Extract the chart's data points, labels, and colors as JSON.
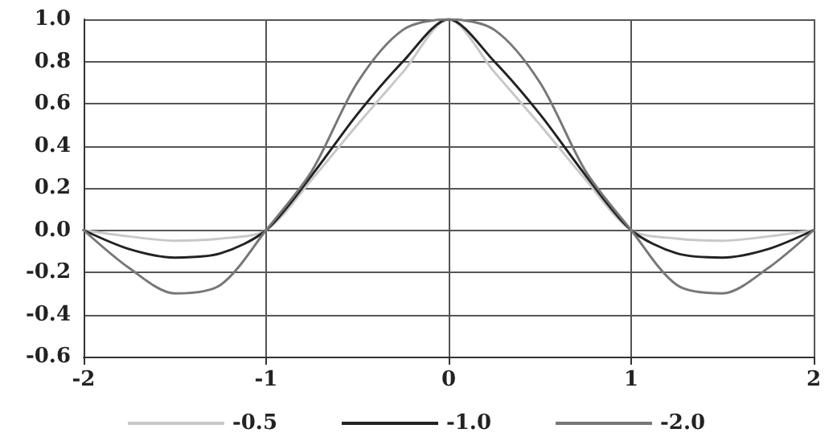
{
  "chart_data": {
    "type": "line",
    "x": [
      -2,
      -1.75,
      -1.5,
      -1.25,
      -1,
      -0.75,
      -0.5,
      -0.25,
      0,
      0.25,
      0.5,
      0.75,
      1,
      1.25,
      1.5,
      1.75,
      2
    ],
    "series": [
      {
        "name": "-0.5",
        "color": "#c8c8c8",
        "values": [
          0,
          -0.03,
          -0.05,
          -0.04,
          0,
          0.24,
          0.5,
          0.75,
          1,
          0.75,
          0.5,
          0.24,
          0,
          -0.04,
          -0.05,
          -0.03,
          0
        ]
      },
      {
        "name": "-1.0",
        "color": "#222222",
        "values": [
          0,
          -0.09,
          -0.13,
          -0.11,
          0,
          0.26,
          0.55,
          0.8,
          1,
          0.8,
          0.55,
          0.26,
          0,
          -0.11,
          -0.13,
          -0.09,
          0
        ]
      },
      {
        "name": "-2.0",
        "color": "#777777",
        "values": [
          0,
          -0.18,
          -0.3,
          -0.26,
          0,
          0.28,
          0.7,
          0.95,
          1,
          0.95,
          0.7,
          0.28,
          0,
          -0.26,
          -0.3,
          -0.18,
          0
        ]
      }
    ],
    "xlim": [
      -2,
      2
    ],
    "xticks": [
      -2,
      -1,
      0,
      1,
      2
    ],
    "ylim": [
      -0.6,
      1.0
    ],
    "yticks": [
      {
        "value": -0.6,
        "label": "-0.6"
      },
      {
        "value": -0.4,
        "label": "-0.4"
      },
      {
        "value": -0.2,
        "label": "-0.2"
      },
      {
        "value": 0,
        "label": "0.0"
      },
      {
        "value": 0.2,
        "label": "0.2"
      },
      {
        "value": 0.4,
        "label": "0.4"
      },
      {
        "value": 0.6,
        "label": "0.6"
      },
      {
        "value": 0.8,
        "label": "0.8"
      },
      {
        "value": 1.0,
        "label": "1.0"
      }
    ],
    "grid": true,
    "legend": "bottom",
    "marker": "none",
    "line_style": "solid"
  }
}
